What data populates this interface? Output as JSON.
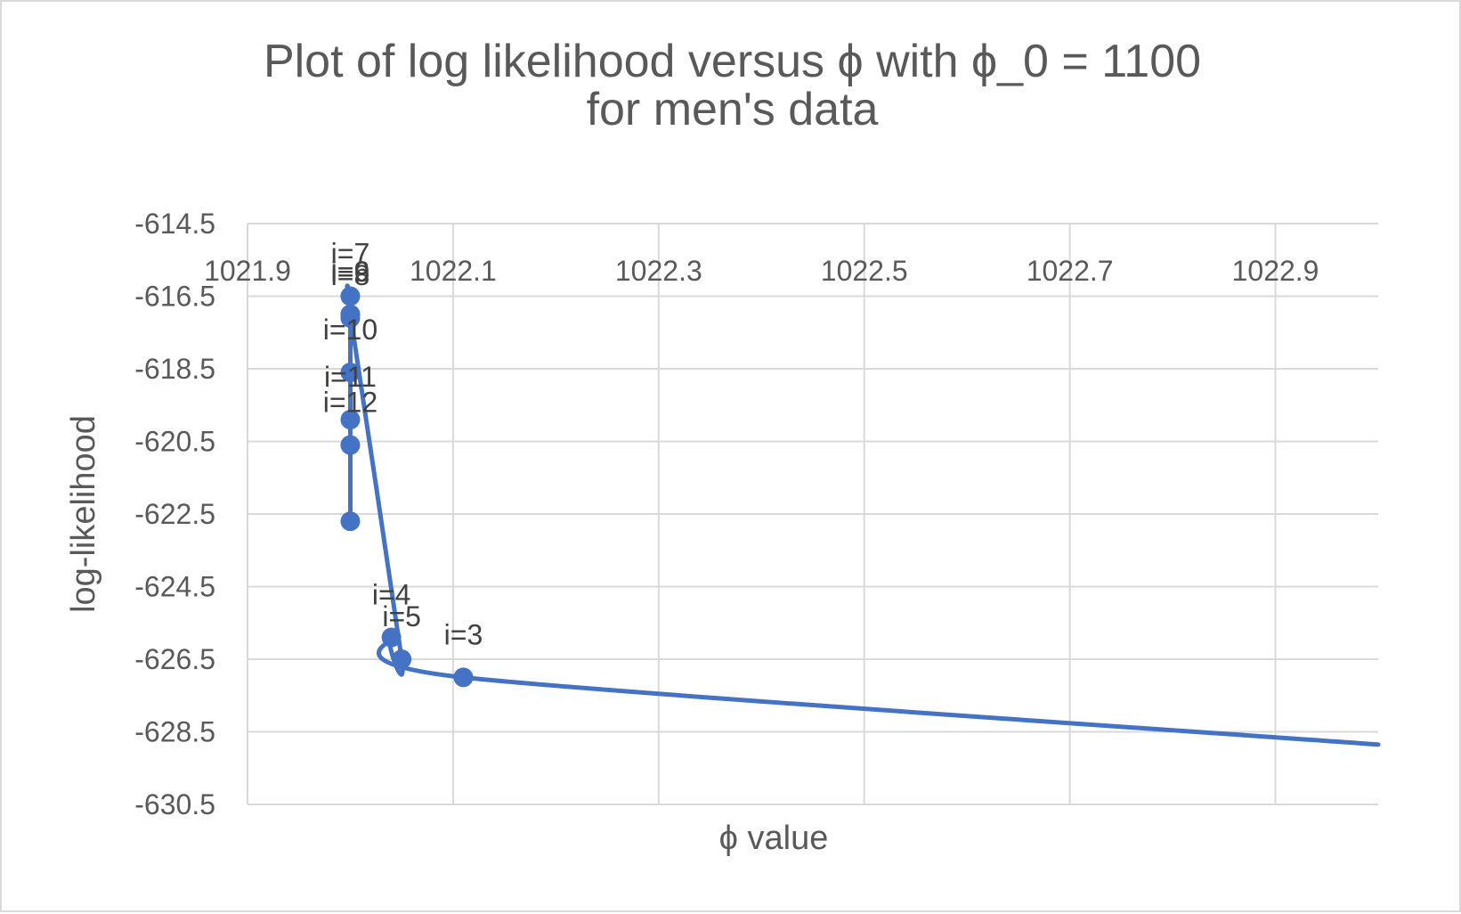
{
  "chart_data": {
    "type": "scatter",
    "title_lines": [
      "Plot of log likelihood versus ϕ with ϕ_0 = 1100",
      "for men's data"
    ],
    "xlabel": "ϕ value",
    "ylabel": "log-likelihood",
    "xlim": [
      1021.9,
      1023.0
    ],
    "ylim": [
      -630.5,
      -614.5
    ],
    "x_ticks": [
      "1021.9",
      "1022.1",
      "1022.3",
      "1022.5",
      "1022.7",
      "1022.9"
    ],
    "y_ticks": [
      "-614.5",
      "-616.5",
      "-618.5",
      "-620.5",
      "-622.5",
      "-624.5",
      "-626.5",
      "-628.5",
      "-630.5"
    ],
    "x_tick_values": [
      1021.9,
      1022.1,
      1022.3,
      1022.5,
      1022.7,
      1022.9
    ],
    "y_tick_values": [
      -614.5,
      -616.5,
      -618.5,
      -620.5,
      -622.5,
      -624.5,
      -626.5,
      -628.5,
      -630.5
    ],
    "x_axis_position": "top",
    "grid": true,
    "smooth": true,
    "line_color": "#4472c4",
    "series": [
      {
        "points": [
          {
            "x": 1023.0,
            "y": -628.85,
            "label": ""
          },
          {
            "x": 1022.11,
            "y": -627.0,
            "label": "i=3"
          },
          {
            "x": 1022.04,
            "y": -625.9,
            "label": "i=4"
          },
          {
            "x": 1022.05,
            "y": -626.5,
            "label": "i=5"
          },
          {
            "x": 1022.0,
            "y": -617.0,
            "label": "i=6"
          },
          {
            "x": 1022.0,
            "y": -616.5,
            "label": "i=7"
          },
          {
            "x": 1022.0,
            "y": -617.1,
            "label": "i=8"
          },
          {
            "x": 1022.0,
            "y": -617.0,
            "label": "i=9"
          },
          {
            "x": 1022.0,
            "y": -618.6,
            "label": "i=10"
          },
          {
            "x": 1022.0,
            "y": -619.9,
            "label": "i=11"
          },
          {
            "x": 1022.0,
            "y": -620.6,
            "label": "i=12"
          },
          {
            "x": 1022.0,
            "y": -622.7,
            "label": ""
          }
        ]
      }
    ]
  }
}
